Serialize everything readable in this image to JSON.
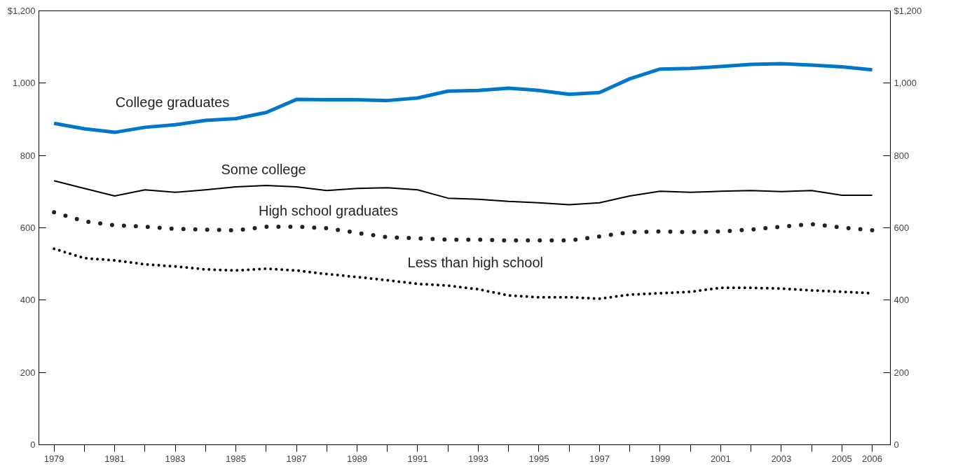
{
  "chart_data": {
    "type": "line",
    "x": [
      1979,
      1980,
      1981,
      1982,
      1983,
      1984,
      1985,
      1986,
      1987,
      1988,
      1989,
      1990,
      1991,
      1992,
      1993,
      1994,
      1995,
      1996,
      1997,
      1998,
      1999,
      2000,
      2001,
      2002,
      2003,
      2004,
      2005,
      2006
    ],
    "series": [
      {
        "color": "#0077c8",
        "line_style": "solid",
        "values": [
          889,
          874,
          864,
          878,
          885,
          897,
          902,
          919,
          955,
          954,
          954,
          952,
          959,
          978,
          980,
          986,
          980,
          969,
          974,
          1012,
          1039,
          1041,
          1046,
          1052,
          1054,
          1050,
          1045,
          1037
        ]
      },
      {
        "color": "#000000",
        "line_style": "solid",
        "values": [
          730,
          709,
          688,
          705,
          698,
          705,
          713,
          717,
          713,
          703,
          709,
          711,
          705,
          682,
          679,
          673,
          669,
          664,
          669,
          688,
          701,
          698,
          701,
          703,
          700,
          703,
          690,
          690
        ]
      },
      {
        "color": "#222222",
        "line_style": "dotted",
        "values": [
          643,
          618,
          607,
          603,
          597,
          595,
          593,
          603,
          603,
          599,
          586,
          574,
          571,
          567,
          567,
          565,
          565,
          565,
          576,
          588,
          590,
          588,
          590,
          595,
          603,
          610,
          601,
          593
        ]
      },
      {
        "color": "#000000",
        "line_style": "dotted",
        "values": [
          542,
          516,
          510,
          499,
          493,
          485,
          482,
          487,
          482,
          472,
          464,
          455,
          445,
          440,
          430,
          413,
          408,
          408,
          404,
          415,
          419,
          423,
          434,
          434,
          432,
          427,
          423,
          419
        ]
      }
    ],
    "annotations": [
      "College graduates",
      "Some college",
      "High school graduates",
      "Less than high school"
    ],
    "xlim": [
      1978.5,
      2006.6
    ],
    "xticks": [
      1979,
      {
        "value": 1980,
        "label": null
      },
      1981,
      {
        "value": 1982,
        "label": null
      },
      1983,
      {
        "value": 1984,
        "label": null
      },
      1985,
      {
        "value": 1986,
        "label": null
      },
      1987,
      {
        "value": 1988,
        "label": null
      },
      1989,
      {
        "value": 1990,
        "label": null
      },
      1991,
      {
        "value": 1992,
        "label": null
      },
      1993,
      {
        "value": 1994,
        "label": null
      },
      1995,
      {
        "value": 1996,
        "label": null
      },
      1997,
      {
        "value": 1998,
        "label": null
      },
      1999,
      {
        "value": 2000,
        "label": null
      },
      2001,
      {
        "value": 2002,
        "label": null
      },
      2003,
      {
        "value": 2004,
        "label": null
      },
      2005,
      2006
    ],
    "ylim": [
      0,
      1200
    ],
    "yticks": [
      0,
      200,
      400,
      600,
      800,
      {
        "value": 1000,
        "label": "1,000"
      },
      {
        "value": 1200,
        "label": "$1,200"
      }
    ],
    "y2lim": [
      0,
      1200
    ],
    "y2ticks": [
      0,
      200,
      400,
      600,
      800,
      {
        "value": 1000,
        "label": "1,000"
      },
      {
        "value": 1200,
        "label": "$1,200"
      }
    ],
    "grid": false,
    "marker": "none"
  }
}
